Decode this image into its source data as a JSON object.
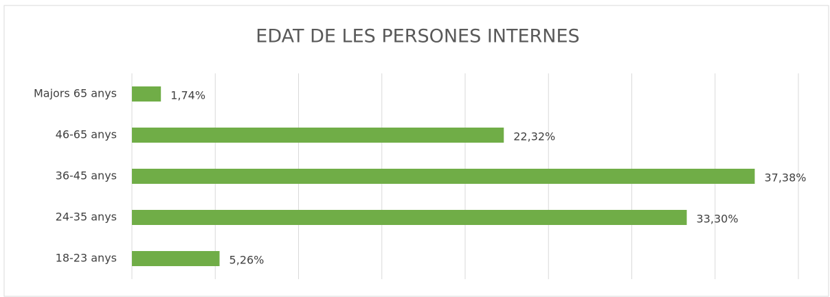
{
  "chart_data": {
    "type": "bar",
    "orientation": "horizontal",
    "title": "EDAT DE LES PERSONES INTERNES",
    "categories": [
      "Majors 65 anys",
      "46-65 anys",
      "36-45 anys",
      "24-35 anys",
      "18-23 anys"
    ],
    "values": [
      1.74,
      22.32,
      37.38,
      33.3,
      5.26
    ],
    "value_labels": [
      "1,74%",
      "22,32%",
      "37,38%",
      "33,30%",
      "5,26%"
    ],
    "color": "#70ad47",
    "xlim": [
      0,
      40
    ],
    "xticks": [
      0,
      5,
      10,
      15,
      20,
      25,
      30,
      35,
      40
    ],
    "grid": true
  }
}
